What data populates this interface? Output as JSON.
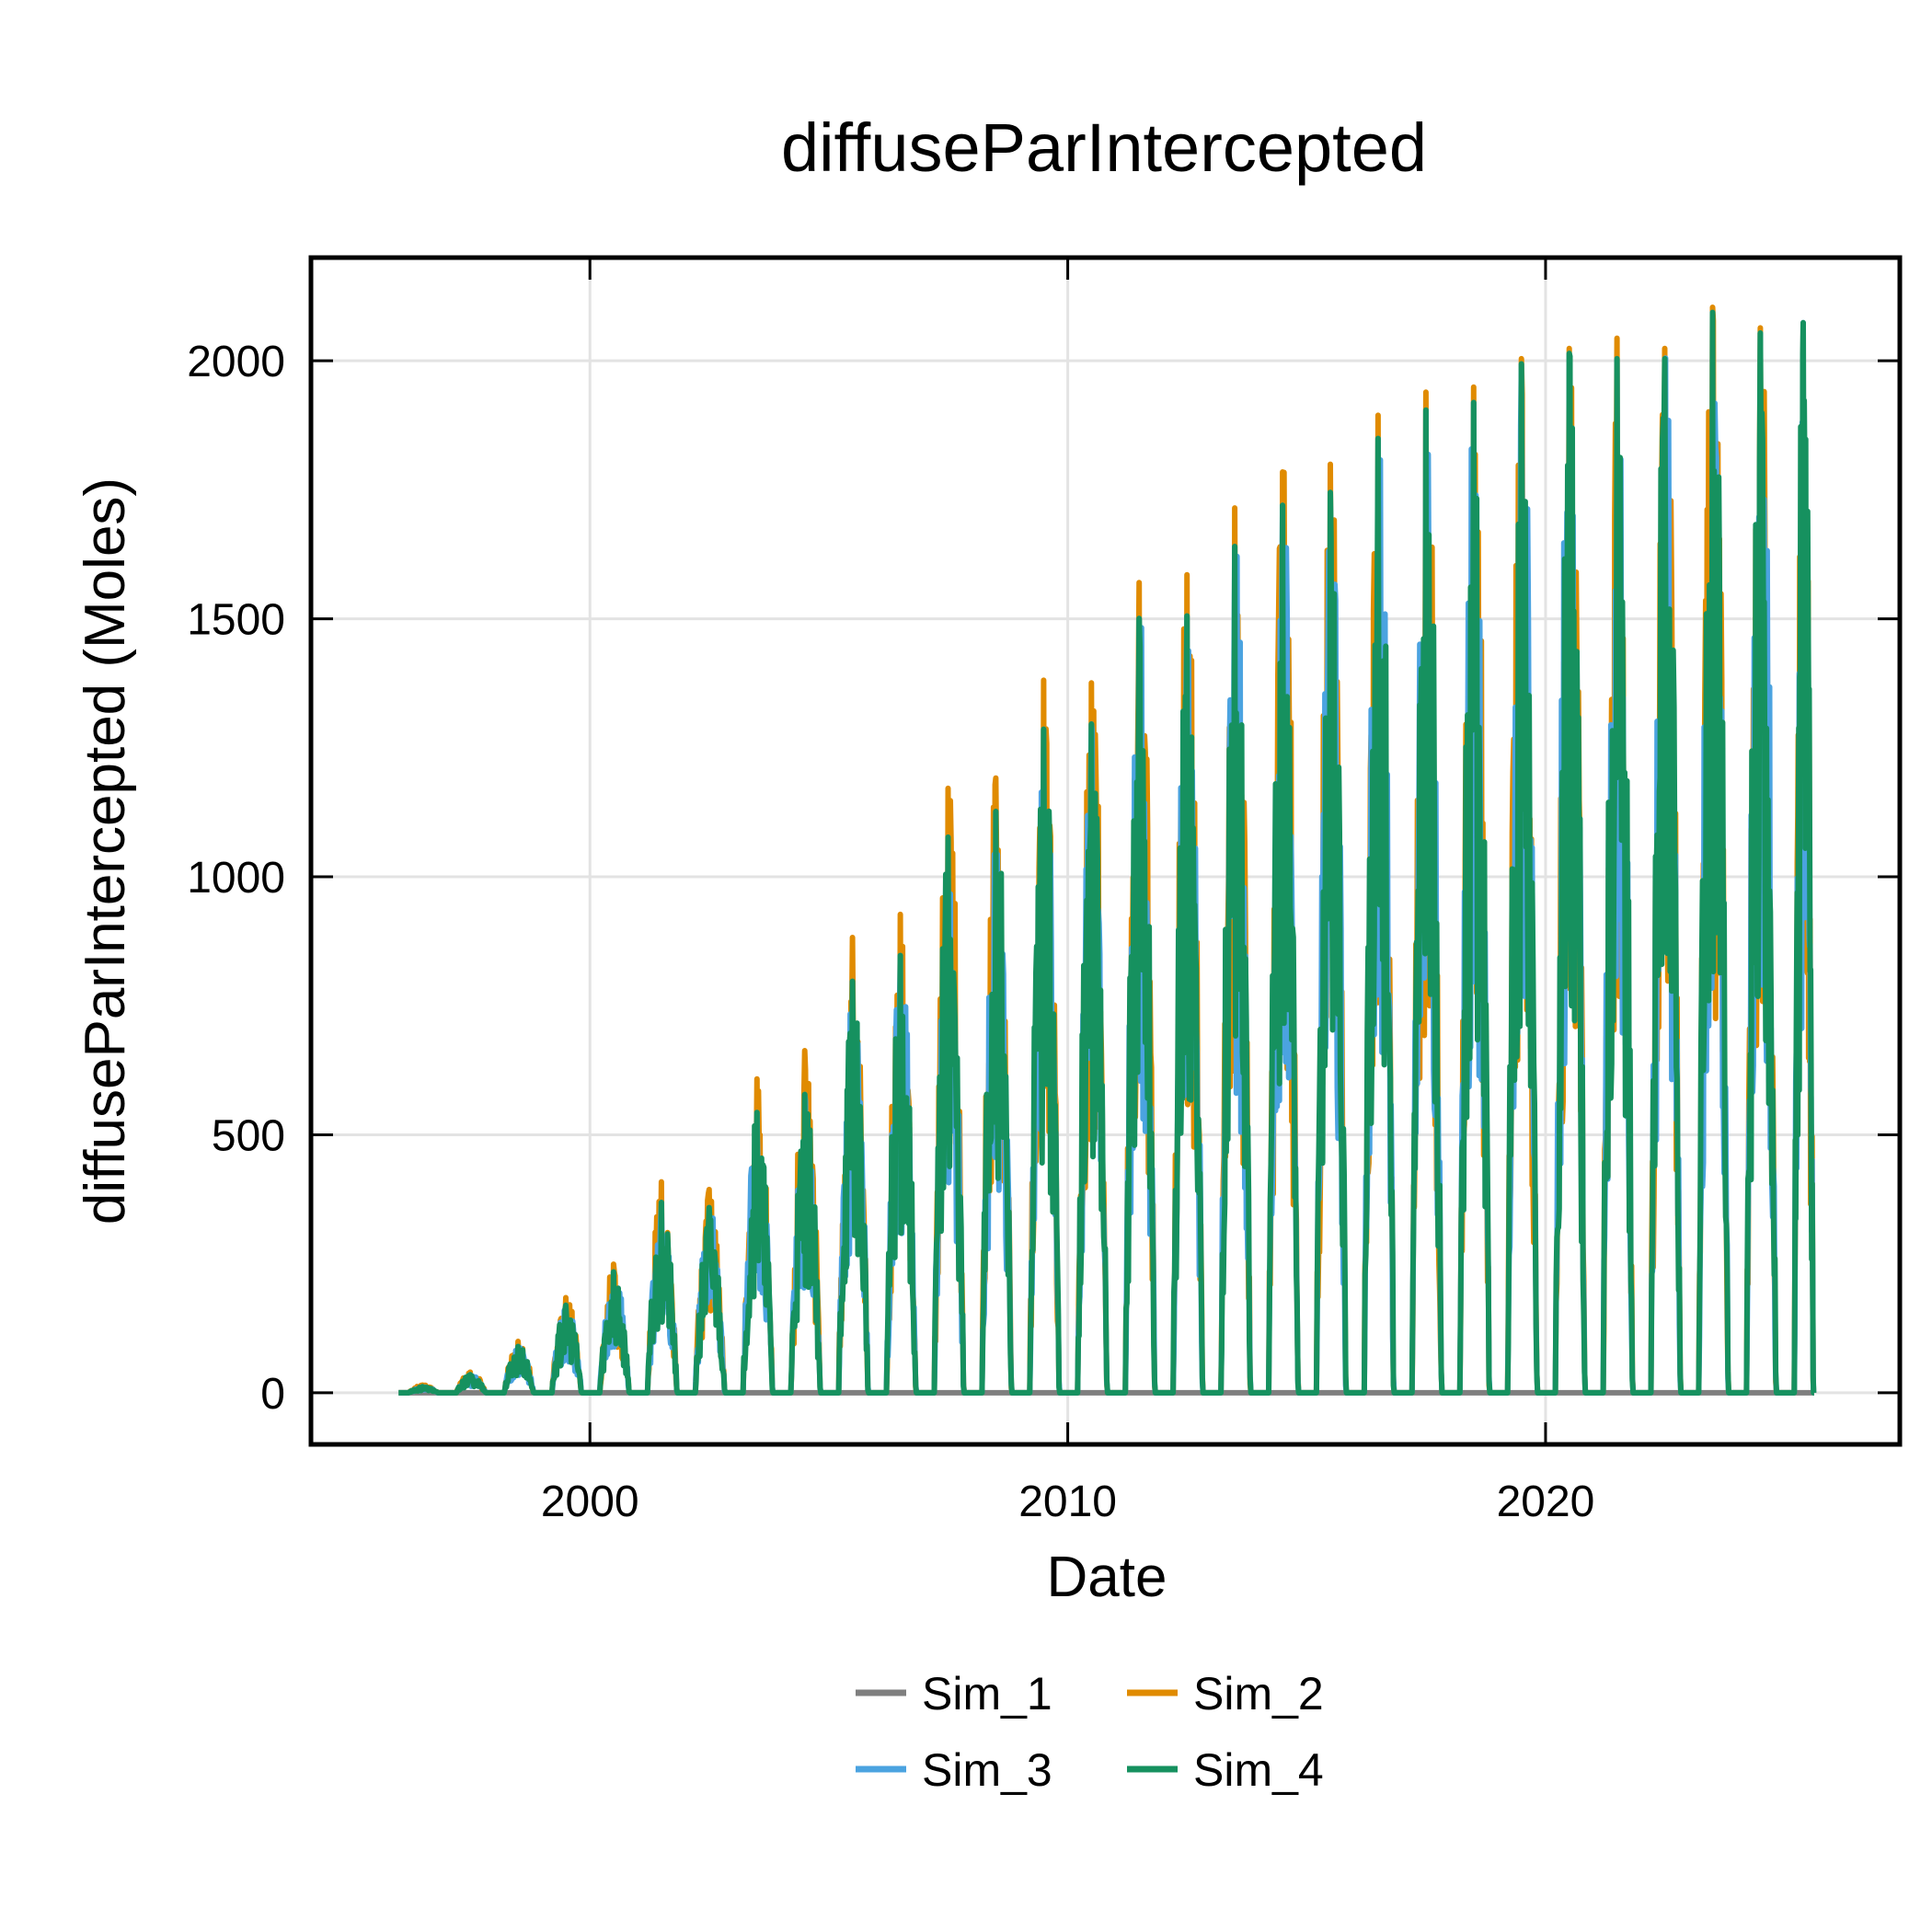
{
  "chart_data": {
    "type": "line",
    "title": "diffuseParIntercepted",
    "xlabel": "Date",
    "ylabel": "diffuseParIntercepted (Moles)",
    "x_type": "date",
    "xlim": [
      "1994-03-01",
      "2027-06-01"
    ],
    "ylim": [
      -100,
      2200
    ],
    "x_ticks": [
      2000,
      2010,
      2020
    ],
    "y_ticks": [
      0,
      500,
      1000,
      1500,
      2000
    ],
    "grid": true,
    "legend_position": "bottom",
    "growing_season": {
      "start_day_of_year": 75,
      "end_day_of_year": 310
    },
    "series": [
      {
        "name": "Sim_1",
        "color": "#7f7f7f",
        "x": [
          "1995-12-31",
          "1996-12-31",
          "1997-12-31",
          "1998-12-31",
          "1999-12-31",
          "2000-12-31",
          "2001-12-31",
          "2002-12-31",
          "2003-12-31",
          "2004-12-31",
          "2005-12-31",
          "2006-12-31",
          "2007-12-31",
          "2008-12-31",
          "2009-12-31",
          "2010-12-31",
          "2011-12-31",
          "2012-12-31",
          "2013-12-31",
          "2014-12-31",
          "2015-12-31",
          "2016-12-31",
          "2017-12-31",
          "2018-12-31",
          "2019-12-31",
          "2020-12-31",
          "2021-12-31",
          "2022-12-31",
          "2023-12-31",
          "2024-12-31",
          "2025-08-15"
        ],
        "values": [
          0,
          0,
          0,
          0,
          0,
          0,
          0,
          0,
          0,
          0,
          0,
          0,
          0,
          0,
          0,
          0,
          0,
          0,
          0,
          0,
          0,
          0,
          0,
          0,
          0,
          0,
          0,
          0,
          0,
          0,
          0
        ]
      },
      {
        "name": "Sim_2",
        "color": "#e08b00",
        "peak_years": [
          1996,
          1997,
          1998,
          1999,
          2000,
          2001,
          2002,
          2003,
          2004,
          2005,
          2006,
          2007,
          2008,
          2009,
          2010,
          2011,
          2012,
          2013,
          2014,
          2015,
          2016,
          2017,
          2018,
          2019,
          2020,
          2021,
          2022,
          2023,
          2024,
          2025
        ],
        "peak_values": [
          15,
          40,
          100,
          185,
          250,
          410,
          395,
          610,
          665,
          885,
          930,
          1175,
          1195,
          1385,
          1380,
          1575,
          1590,
          1720,
          1790,
          1805,
          1900,
          1945,
          1955,
          2010,
          2030,
          2050,
          2030,
          2110,
          2070,
          2075
        ]
      },
      {
        "name": "Sim_3",
        "color": "#4ba3e0",
        "peak_years": [
          1996,
          1997,
          1998,
          1999,
          2000,
          2001,
          2002,
          2003,
          2004,
          2005,
          2006,
          2007,
          2008,
          2009,
          2010,
          2011,
          2012,
          2013,
          2014,
          2015,
          2016,
          2017,
          2018,
          2019,
          2020,
          2021,
          2022,
          2023,
          2024,
          2025
        ],
        "peak_values": [
          12,
          35,
          90,
          170,
          235,
          370,
          360,
          545,
          580,
          800,
          850,
          1080,
          1130,
          1290,
          1300,
          1505,
          1510,
          1645,
          1725,
          1750,
          1855,
          1910,
          1925,
          2000,
          2020,
          2010,
          2010,
          2100,
          2060,
          2080
        ]
      },
      {
        "name": "Sim_4",
        "color": "#16915f",
        "peak_years": [
          1996,
          1997,
          1998,
          1999,
          2000,
          2001,
          2002,
          2003,
          2004,
          2005,
          2006,
          2007,
          2008,
          2009,
          2010,
          2011,
          2012,
          2013,
          2014,
          2015,
          2016,
          2017,
          2018,
          2019,
          2020,
          2021,
          2022,
          2023,
          2024,
          2025
        ],
        "peak_values": [
          12,
          35,
          90,
          170,
          235,
          370,
          360,
          545,
          580,
          800,
          850,
          1080,
          1130,
          1290,
          1300,
          1505,
          1510,
          1645,
          1725,
          1750,
          1855,
          1910,
          1925,
          2000,
          2020,
          2010,
          2010,
          2100,
          2060,
          2080
        ]
      }
    ]
  }
}
